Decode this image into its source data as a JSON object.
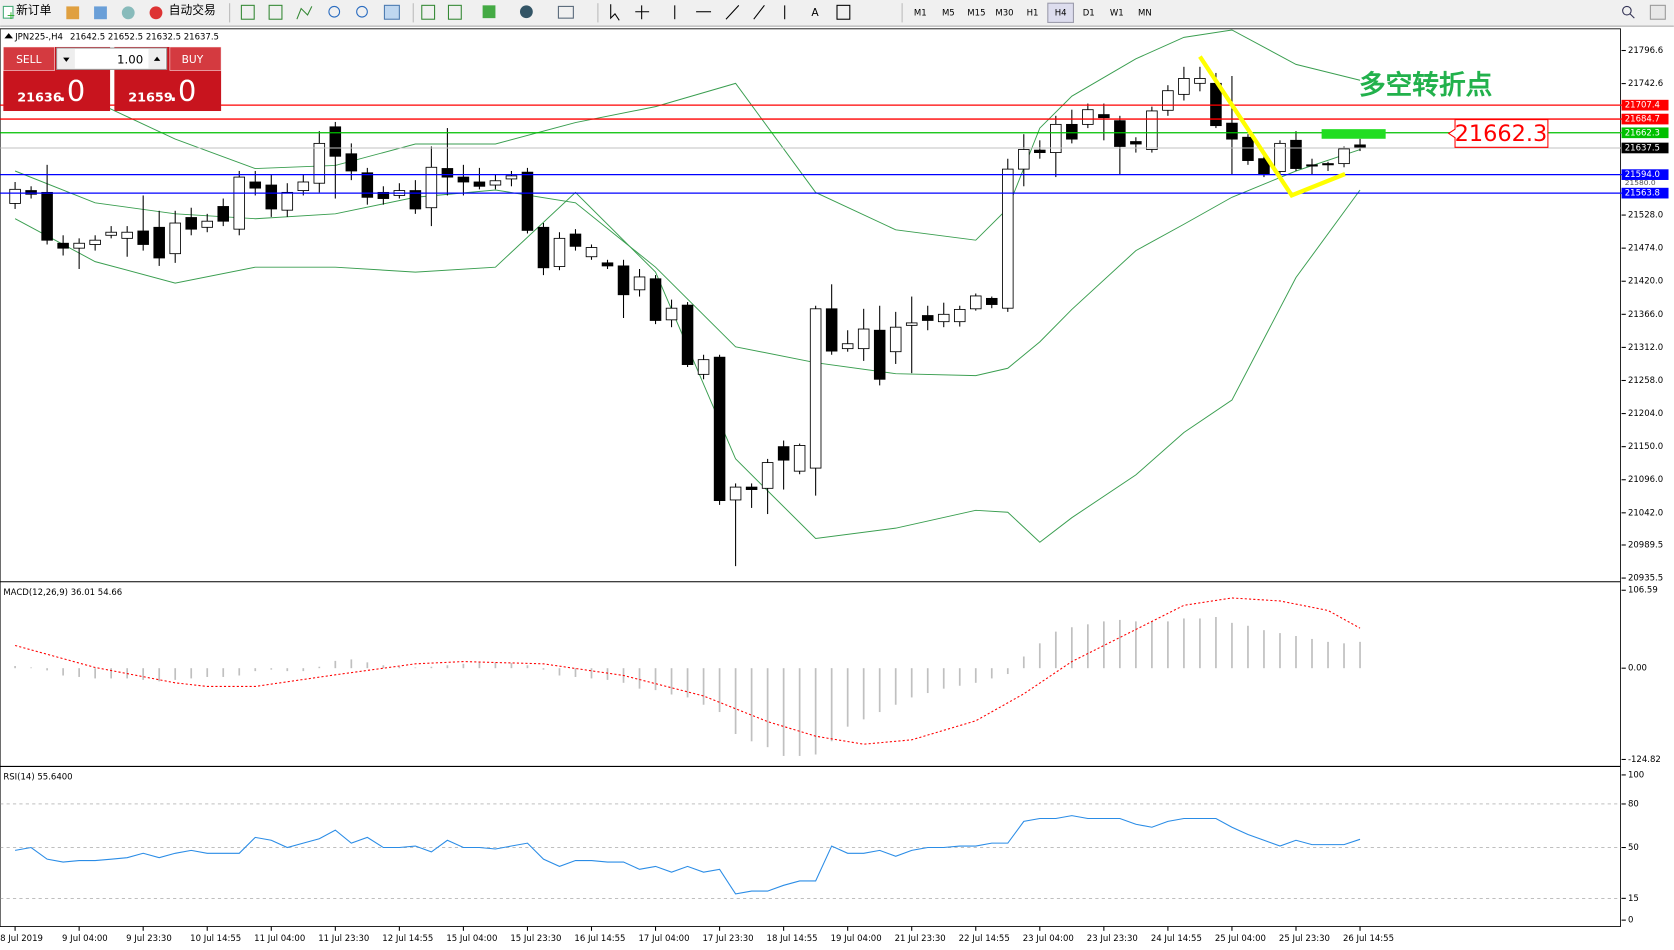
{
  "toolbar": {
    "new_order": "新订单",
    "auto_trade": "自动交易",
    "timeframes": [
      "M1",
      "M5",
      "M15",
      "M30",
      "H1",
      "H4",
      "D1",
      "W1",
      "MN"
    ],
    "active": "H4"
  },
  "trade_panel": {
    "sell": "SELL",
    "buy": "BUY",
    "volume": "1.00",
    "sell_price": "21636",
    "sell_fraction": ".0",
    "buy_price": "21659",
    "buy_fraction": ".0"
  },
  "annotation": "多空转折点",
  "chart_data": [
    {
      "type": "candlestick",
      "title": "JPN225-,H4",
      "open": [
        21547,
        21568,
        21565,
        21482,
        21474,
        21480,
        21495,
        21490,
        21502,
        21508,
        21465,
        21524,
        21508,
        21542,
        21505,
        21582,
        21577,
        21536,
        21568,
        21580,
        21672,
        21628,
        21597,
        21565,
        21560,
        21568,
        21540,
        21604,
        21590,
        21582,
        21577,
        21587,
        21598,
        21508,
        21444,
        21497,
        21460,
        21450,
        21445,
        21406,
        21424,
        21357,
        21381,
        21268,
        21296,
        21063,
        21084,
        21082,
        21150,
        21110,
        21115,
        21375,
        21310,
        21310,
        21340,
        21305,
        21348,
        21364,
        21354,
        21354,
        21375,
        21392,
        21376,
        21603,
        21634,
        21630,
        21676,
        21676,
        21692,
        21682,
        21648,
        21635,
        21699,
        21725,
        21743,
        21743,
        21678,
        21655,
        21620,
        21599,
        21650,
        21610,
        21612,
        21612,
        21642.5
      ],
      "high": [
        21582,
        21575,
        21610,
        21495,
        21490,
        21495,
        21510,
        21510,
        21560,
        21535,
        21535,
        21540,
        21530,
        21555,
        21600,
        21600,
        21595,
        21580,
        21595,
        21665,
        21680,
        21645,
        21605,
        21575,
        21580,
        21585,
        21640,
        21670,
        21610,
        21605,
        21595,
        21600,
        21605,
        21515,
        21500,
        21505,
        21480,
        21455,
        21455,
        21440,
        21430,
        21390,
        21386,
        21300,
        21300,
        21090,
        21090,
        21130,
        21160,
        21155,
        21380,
        21415,
        21340,
        21375,
        21380,
        21370,
        21395,
        21380,
        21385,
        21380,
        21400,
        21395,
        21620,
        21660,
        21650,
        21690,
        21700,
        21710,
        21710,
        21690,
        21655,
        21705,
        21740,
        21770,
        21770,
        21760,
        21755,
        21660,
        21630,
        21650,
        21665,
        21620,
        21615,
        21640,
        21652.5
      ],
      "low": [
        21538,
        21555,
        21480,
        21462,
        21440,
        21470,
        21490,
        21460,
        21470,
        21445,
        21450,
        21495,
        21500,
        21510,
        21495,
        21560,
        21525,
        21525,
        21560,
        21565,
        21555,
        21585,
        21545,
        21545,
        21555,
        21530,
        21510,
        21560,
        21560,
        21570,
        21570,
        21575,
        21498,
        21430,
        21438,
        21470,
        21455,
        21440,
        21360,
        21395,
        21350,
        21345,
        21280,
        21260,
        21055,
        20955,
        21050,
        21040,
        21080,
        21105,
        21070,
        21300,
        21305,
        21290,
        21250,
        21285,
        21270,
        21340,
        21345,
        21346,
        21372,
        21376,
        21370,
        21575,
        21620,
        21590,
        21645,
        21670,
        21650,
        21595,
        21630,
        21630,
        21690,
        21715,
        21730,
        21670,
        21595,
        21610,
        21590,
        21590,
        21600,
        21595,
        21600,
        21606,
        21632.5
      ],
      "close": [
        21570,
        21562,
        21487,
        21474,
        21482,
        21487,
        21500,
        21500,
        21480,
        21458,
        21515,
        21505,
        21518,
        21518,
        21590,
        21572,
        21538,
        21565,
        21582,
        21645,
        21624,
        21600,
        21557,
        21555,
        21568,
        21538,
        21606,
        21590,
        21582,
        21575,
        21584,
        21592,
        21503,
        21442,
        21490,
        21477,
        21475,
        21445,
        21398,
        21427,
        21356,
        21376,
        21284,
        21292,
        21062,
        21084,
        21080,
        21124,
        21128,
        21152,
        21375,
        21306,
        21318,
        21342,
        21260,
        21345,
        21352,
        21356,
        21366,
        21374,
        21396,
        21382,
        21603,
        21635,
        21630,
        21676,
        21652,
        21700,
        21687,
        21640,
        21644,
        21698,
        21731,
        21751,
        21751,
        21674,
        21652,
        21617,
        21594,
        21645,
        21604,
        21608,
        21610,
        21636,
        21637.5
      ],
      "bands": {
        "color": "#3a9e50",
        "x": [
          0,
          5,
          10,
          15,
          20,
          25,
          30,
          35,
          40,
          45,
          50,
          55,
          60,
          62,
          64,
          66,
          70,
          73,
          76,
          80,
          84
        ],
        "upper": [
          21731,
          21713,
          21652,
          21604,
          21609,
          21644,
          21644,
          21679,
          21705,
          21743,
          21565,
          21504,
          21487,
          21539,
          21670,
          21722,
          21783,
          21818,
          21830,
          21774,
          21748
        ],
        "middle": [
          21600,
          21548,
          21530,
          21522,
          21530,
          21557,
          21569,
          21548,
          21443,
          21313,
          21287,
          21269,
          21266,
          21278,
          21321,
          21374,
          21470,
          21513,
          21557,
          21600,
          21635
        ],
        "lower": [
          21522,
          21452,
          21417,
          21443,
          21443,
          21435,
          21443,
          21565,
          21435,
          21130,
          21000,
          21017,
          21046,
          21043,
          20994,
          21034,
          21104,
          21173,
          21226,
          21426,
          21569
        ]
      },
      "levels": [
        {
          "value": 21707.4,
          "color": "#ff0000"
        },
        {
          "value": 21684.7,
          "color": "#ff0000"
        },
        {
          "value": 21662.3,
          "color": "#00c000"
        },
        {
          "value": 21594,
          "label": "21594.0",
          "color": "#0000ff"
        },
        {
          "value": 21563.8,
          "color": "#0000ff"
        }
      ],
      "marker_label": {
        "value": 21580,
        "label": "21580.0"
      },
      "ylim": [
        20933,
        21832
      ],
      "yticks": [
        21796.6,
        21742.6,
        {
          "value": 21528,
          "label": "21528.0"
        },
        {
          "value": 21474,
          "label": "21474.0"
        },
        {
          "value": 21420,
          "label": "21420.0"
        },
        {
          "value": 21366,
          "label": "21366.0"
        },
        {
          "value": 21312,
          "label": "21312.0"
        },
        {
          "value": 21258,
          "label": "21258.0"
        },
        {
          "value": 21204,
          "label": "21204.0"
        },
        {
          "value": 21150,
          "label": "21150.0"
        },
        {
          "value": 21096,
          "label": "21096.0"
        },
        {
          "value": 21042,
          "label": "21042.0"
        },
        20989.5,
        20935.5
      ],
      "xlabels": [
        "8 Jul 2019",
        "9 Jul 04:00",
        "9 Jul 23:30",
        "10 Jul 14:55",
        "11 Jul 04:00",
        "11 Jul 23:30",
        "12 Jul 14:55",
        "15 Jul 04:00",
        "15 Jul 23:30",
        "16 Jul 14:55",
        "17 Jul 04:00",
        "17 Jul 23:30",
        "18 Jul 14:55",
        "19 Jul 04:00",
        "21 Jul 23:30",
        "22 Jul 14:55",
        "23 Jul 04:00",
        "23 Jul 23:30",
        "24 Jul 14:55",
        "25 Jul 04:00",
        "25 Jul 23:30",
        "26 Jul 14:55"
      ]
    },
    {
      "type": "bar",
      "title": "MACD(12,26,9) 36.01 54.66",
      "color": "#c0c0c0",
      "values": [
        3,
        1,
        -3,
        -10,
        -12,
        -14,
        -14,
        -14,
        -16,
        -18,
        -16,
        -14,
        -12,
        -12,
        -10,
        -4,
        -2,
        -4,
        -4,
        2,
        10,
        12,
        8,
        4,
        2,
        1,
        2,
        4,
        6,
        8,
        8,
        7,
        4,
        -2,
        -10,
        -12,
        -14,
        -16,
        -20,
        -28,
        -30,
        -36,
        -40,
        -50,
        -60,
        -90,
        -100,
        -108,
        -120,
        -120,
        -118,
        -100,
        -80,
        -70,
        -60,
        -50,
        -40,
        -34,
        -28,
        -24,
        -20,
        -14,
        -8,
        16,
        34,
        50,
        56,
        60,
        64,
        66,
        64,
        64,
        64,
        68,
        68,
        70,
        62,
        58,
        52,
        48,
        44,
        40,
        36,
        34,
        36.01
      ],
      "signal": {
        "color": "#ff0000",
        "x": [
          0,
          5,
          10,
          12,
          15,
          20,
          25,
          28,
          33,
          38,
          43,
          47,
          50,
          53,
          56,
          60,
          63,
          66,
          70,
          73,
          76,
          79,
          82,
          84
        ],
        "values": [
          31,
          1,
          -20,
          -25,
          -25,
          -9,
          6,
          9,
          6,
          -10,
          -38,
          -73,
          -93,
          -104,
          -98,
          -72,
          -35,
          9,
          53,
          86,
          96,
          92,
          79,
          54.66
        ]
      },
      "ylim": [
        -131.4,
        115.3
      ],
      "yticks": [
        106.59,
        {
          "value": 0,
          "label": "0.00"
        },
        -124.82
      ]
    },
    {
      "type": "line",
      "title": "RSI(14) 55.6400",
      "color": "#2a8ce6",
      "values": [
        48,
        50,
        42,
        40,
        41,
        41,
        42,
        43,
        46,
        43,
        46,
        48,
        46,
        46,
        46,
        57,
        55,
        50,
        53,
        56,
        62,
        53,
        57,
        50,
        50,
        51,
        47,
        55,
        50,
        50,
        49,
        51,
        53,
        42,
        37,
        41,
        41,
        40,
        40,
        35,
        37,
        33,
        37,
        33,
        35,
        18,
        20,
        20,
        24,
        27,
        27,
        51,
        46,
        46,
        48,
        44,
        48,
        50,
        50,
        51,
        51,
        53,
        53,
        68,
        70,
        70,
        72,
        70,
        70,
        70,
        66,
        64,
        68,
        70,
        70,
        70,
        64,
        59,
        55,
        51,
        55,
        52,
        52,
        52,
        55.64
      ],
      "ylim": [
        -4.4,
        104.4
      ],
      "yticks": [
        100,
        80,
        50,
        15,
        0
      ],
      "grid": [
        80,
        50,
        15
      ]
    }
  ]
}
